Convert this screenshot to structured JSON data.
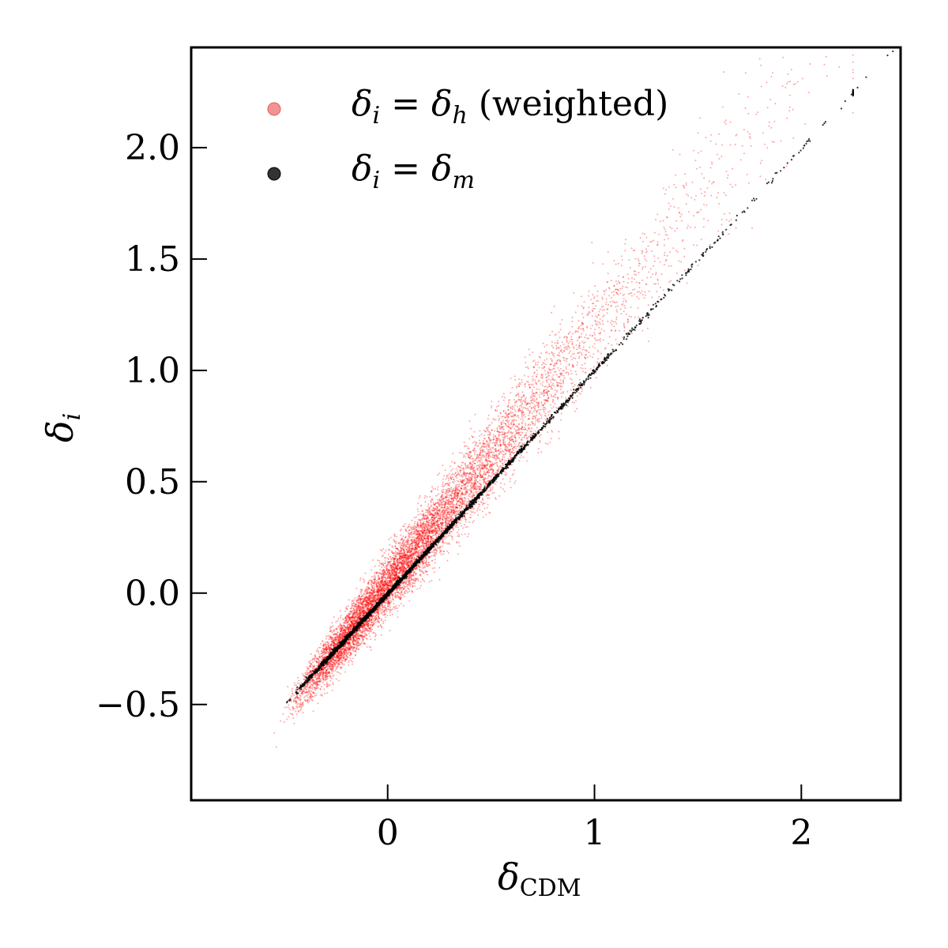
{
  "chart_data": {
    "type": "scatter",
    "xlabel": {
      "main": "δ",
      "sub": "CDM"
    },
    "ylabel": {
      "main": "δ",
      "sub": "i"
    },
    "xlim": [
      -0.95,
      2.48
    ],
    "ylim": [
      -0.93,
      2.45
    ],
    "xticks": [
      0,
      1,
      2
    ],
    "xtick_labels": [
      "0",
      "1",
      "2"
    ],
    "yticks": [
      -0.5,
      0.0,
      0.5,
      1.0,
      1.5,
      2.0
    ],
    "ytick_labels": [
      "−0.5",
      "0.0",
      "0.5",
      "1.0",
      "1.5",
      "2.0"
    ],
    "grid": false,
    "legend_position": "upper-left",
    "series": [
      {
        "name": "δ_i = δ_h (weighted)",
        "legend": {
          "lhs_main": "δ",
          "lhs_sub": "i",
          "eq": " = ",
          "rhs_main": "δ",
          "rhs_sub": "h",
          "suffix": " (weighted)"
        },
        "color": "#ff0000",
        "legend_color": "#f08080",
        "relation": "δ_h ≈ 1.15·δ_CDM + 0.03, scatter widening with δ_CDM",
        "x_range": [
          -0.62,
          2.22
        ],
        "y_range": [
          -0.5,
          2.45
        ],
        "sample_points": [
          [
            -0.62,
            -0.47
          ],
          [
            -0.55,
            -0.42
          ],
          [
            -0.45,
            -0.36
          ],
          [
            -0.35,
            -0.29
          ],
          [
            -0.2,
            -0.16
          ],
          [
            0.0,
            0.04
          ],
          [
            0.2,
            0.26
          ],
          [
            0.4,
            0.49
          ],
          [
            0.6,
            0.72
          ],
          [
            0.8,
            0.95
          ],
          [
            1.0,
            1.18
          ],
          [
            1.2,
            1.41
          ],
          [
            1.4,
            1.64
          ],
          [
            1.6,
            1.87
          ],
          [
            1.8,
            2.08
          ],
          [
            2.0,
            2.28
          ],
          [
            2.2,
            2.38
          ]
        ]
      },
      {
        "name": "δ_i = δ_m",
        "legend": {
          "lhs_main": "δ",
          "lhs_sub": "i",
          "eq": " = ",
          "rhs_main": "δ",
          "rhs_sub": "m",
          "suffix": ""
        },
        "color": "#000000",
        "legend_color": "#333333",
        "relation": "δ_m ≈ δ_CDM (tight one-to-one line)",
        "x_range": [
          -0.64,
          2.45
        ],
        "sample_points": [
          [
            -0.64,
            -0.64
          ],
          [
            -0.5,
            -0.5
          ],
          [
            -0.25,
            -0.25
          ],
          [
            0.0,
            0.0
          ],
          [
            0.25,
            0.25
          ],
          [
            0.5,
            0.5
          ],
          [
            0.75,
            0.75
          ],
          [
            1.0,
            1.0
          ],
          [
            1.25,
            1.25
          ],
          [
            1.5,
            1.5
          ],
          [
            1.75,
            1.75
          ],
          [
            2.0,
            2.0
          ],
          [
            2.2,
            2.2
          ],
          [
            2.45,
            2.44
          ]
        ]
      }
    ]
  }
}
